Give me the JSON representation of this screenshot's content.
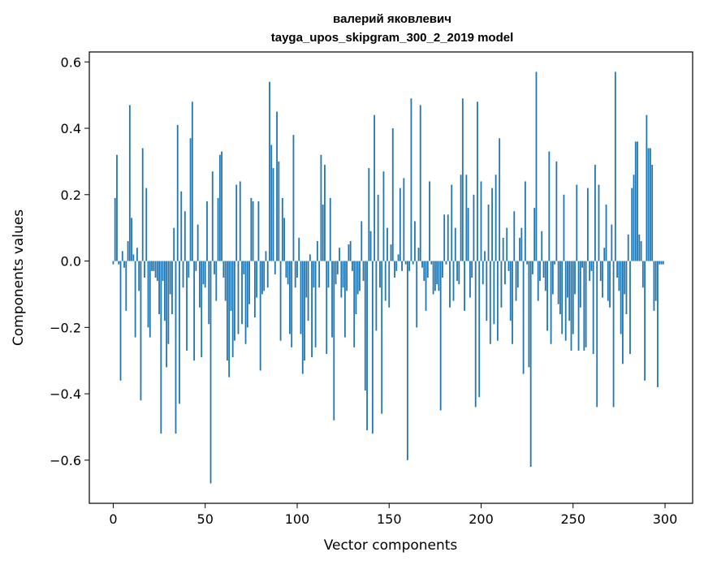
{
  "chart_data": {
    "type": "bar",
    "title": "валерий яковлевич",
    "subtitle": "tayga_upos_skipgram_300_2_2019 model",
    "xlabel": "Vector components",
    "ylabel": "Components values",
    "xlim": [
      -13,
      315
    ],
    "ylim": [
      -0.73,
      0.63
    ],
    "xticks": [
      0,
      50,
      100,
      150,
      200,
      250,
      300
    ],
    "yticks": [
      0.6,
      0.4,
      0.2,
      0.0,
      -0.2,
      -0.4,
      -0.6
    ],
    "xtick_labels": [
      "0",
      "50",
      "100",
      "150",
      "200",
      "250",
      "300"
    ],
    "ytick_labels": [
      "0.6",
      "0.4",
      "0.2",
      "0.0",
      "−0.2",
      "−0.4",
      "−0.6"
    ],
    "grid": false,
    "bar_color": "#1f77b4",
    "values": [
      -0.01,
      0.19,
      0.32,
      -0.01,
      -0.36,
      0.03,
      -0.02,
      -0.15,
      0.06,
      0.47,
      0.13,
      0.02,
      -0.23,
      0.04,
      -0.09,
      -0.42,
      0.34,
      -0.05,
      0.22,
      -0.2,
      -0.23,
      -0.03,
      -0.03,
      -0.05,
      -0.06,
      -0.16,
      -0.52,
      -0.06,
      -0.18,
      -0.32,
      -0.25,
      -0.1,
      -0.16,
      0.1,
      -0.52,
      0.41,
      -0.43,
      0.21,
      -0.08,
      0.15,
      -0.27,
      -0.05,
      0.37,
      0.48,
      -0.3,
      -0.03,
      0.11,
      -0.14,
      -0.29,
      -0.07,
      -0.08,
      0.18,
      -0.19,
      -0.67,
      0.27,
      -0.04,
      -0.12,
      0.19,
      0.32,
      0.33,
      -0.05,
      -0.12,
      -0.3,
      -0.35,
      -0.15,
      -0.29,
      -0.24,
      0.23,
      -0.22,
      0.24,
      -0.19,
      -0.04,
      -0.25,
      -0.2,
      -0.13,
      0.19,
      0.18,
      -0.17,
      -0.11,
      0.18,
      -0.33,
      -0.1,
      -0.09,
      0.03,
      -0.08,
      0.54,
      0.35,
      0.28,
      -0.04,
      0.45,
      0.3,
      -0.24,
      0.19,
      0.13,
      -0.05,
      -0.07,
      -0.22,
      -0.26,
      0.38,
      -0.08,
      -0.05,
      0.07,
      -0.22,
      -0.34,
      -0.3,
      -0.11,
      -0.18,
      0.02,
      -0.29,
      -0.08,
      -0.26,
      0.06,
      -0.08,
      0.32,
      0.17,
      0.29,
      -0.28,
      -0.08,
      0.19,
      -0.23,
      -0.48,
      -0.07,
      -0.04,
      0.04,
      -0.11,
      -0.08,
      -0.23,
      -0.09,
      0.05,
      0.06,
      -0.03,
      -0.26,
      -0.16,
      -0.1,
      -0.09,
      0.12,
      -0.06,
      -0.39,
      -0.51,
      0.28,
      0.09,
      -0.52,
      0.44,
      -0.21,
      0.2,
      -0.08,
      -0.46,
      0.27,
      -0.12,
      0.1,
      -0.14,
      0.05,
      0.4,
      -0.05,
      -0.03,
      0.02,
      0.22,
      -0.03,
      0.25,
      -0.01,
      -0.6,
      -0.03,
      0.49,
      -0.01,
      0.12,
      -0.2,
      0.04,
      0.47,
      -0.02,
      -0.06,
      -0.15,
      -0.05,
      0.24,
      -0.01,
      -0.1,
      -0.09,
      -0.07,
      -0.09,
      -0.45,
      -0.05,
      0.14,
      -0.01,
      0.14,
      -0.14,
      0.23,
      -0.12,
      0.1,
      -0.06,
      -0.07,
      0.26,
      0.49,
      -0.15,
      0.26,
      0.16,
      -0.11,
      -0.05,
      0.2,
      -0.44,
      0.48,
      -0.41,
      0.24,
      -0.07,
      0.03,
      -0.18,
      0.17,
      -0.25,
      0.22,
      -0.19,
      0.26,
      -0.24,
      0.37,
      -0.14,
      0.07,
      -0.07,
      0.1,
      -0.03,
      -0.18,
      -0.25,
      0.15,
      -0.12,
      -0.08,
      0.07,
      0.1,
      -0.34,
      0.24,
      -0.01,
      -0.32,
      -0.62,
      -0.04,
      0.16,
      0.57,
      -0.12,
      -0.06,
      0.09,
      -0.05,
      -0.09,
      -0.21,
      0.33,
      -0.25,
      -0.1,
      -0.01,
      0.3,
      -0.13,
      -0.16,
      -0.22,
      0.2,
      -0.24,
      -0.11,
      -0.18,
      -0.27,
      -0.22,
      -0.1,
      0.23,
      -0.27,
      -0.14,
      -0.02,
      -0.27,
      -0.26,
      0.22,
      -0.06,
      -0.03,
      -0.28,
      0.29,
      -0.44,
      0.23,
      -0.06,
      -0.11,
      0.04,
      0.17,
      -0.12,
      -0.14,
      0.11,
      -0.44,
      0.57,
      -0.05,
      -0.09,
      -0.22,
      -0.31,
      -0.1,
      -0.16,
      0.08,
      -0.28,
      0.22,
      0.26,
      0.36,
      0.36,
      0.08,
      0.06,
      -0.08,
      -0.36,
      0.44,
      0.34,
      0.34,
      0.29,
      -0.15,
      -0.12,
      -0.38,
      -0.01,
      -0.01,
      -0.01
    ]
  }
}
